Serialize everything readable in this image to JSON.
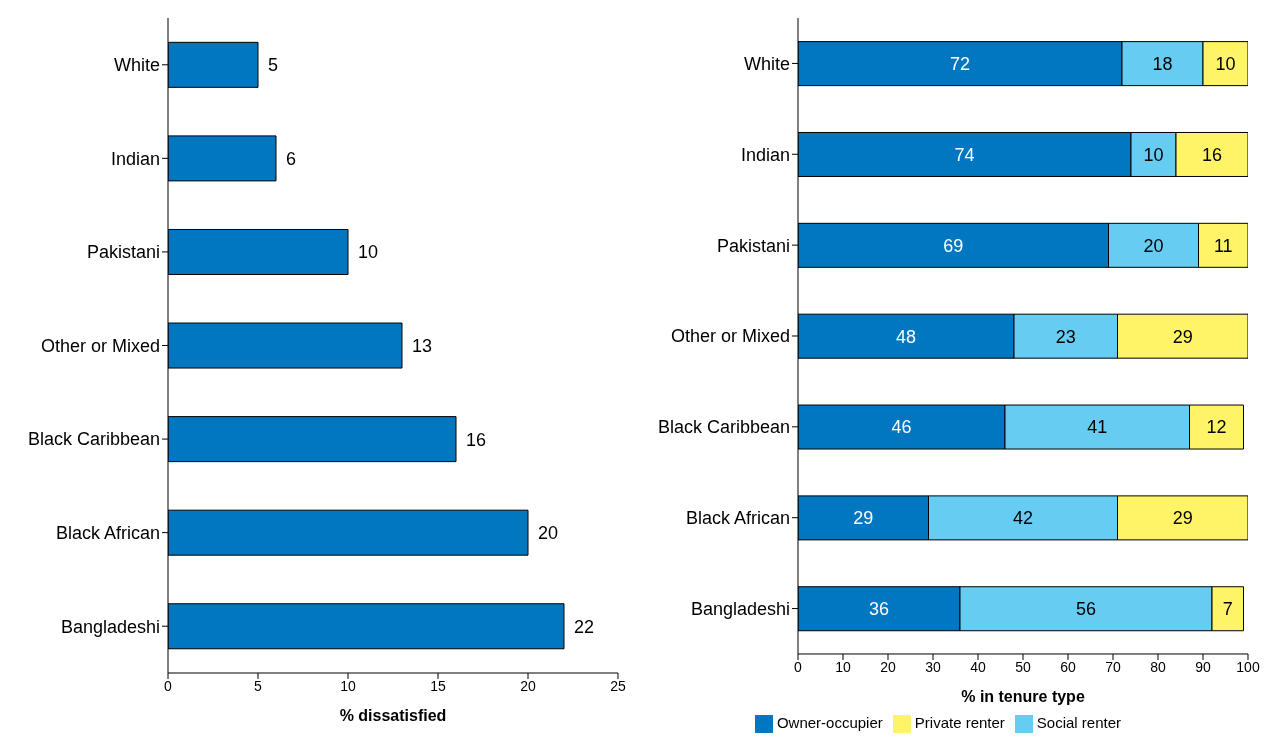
{
  "chart_data": [
    {
      "type": "bar",
      "orientation": "horizontal",
      "categories": [
        "White",
        "Indian",
        "Pakistani",
        "Other or Mixed",
        "Black Caribbean",
        "Black African",
        "Bangladeshi"
      ],
      "values": [
        5,
        6,
        10,
        13,
        16,
        20,
        22
      ],
      "color": "#0077c0",
      "xlim": [
        0,
        25
      ],
      "xticks": [
        0,
        5,
        10,
        15,
        20,
        25
      ],
      "xlabel": "% dissatisfied",
      "data_labels": true
    },
    {
      "type": "bar",
      "orientation": "horizontal",
      "stacked": true,
      "categories": [
        "White",
        "Indian",
        "Pakistani",
        "Other or Mixed",
        "Black Caribbean",
        "Black African",
        "Bangladeshi"
      ],
      "series": [
        {
          "name": "Owner-occupier",
          "color": "#0077c0",
          "values": [
            72,
            74,
            69,
            48,
            46,
            29,
            36
          ]
        },
        {
          "name": "Social renter",
          "color": "#66ccf2",
          "values": [
            18,
            10,
            20,
            23,
            41,
            42,
            56
          ]
        },
        {
          "name": "Private renter",
          "color": "#fff467",
          "values": [
            10,
            16,
            11,
            29,
            12,
            29,
            7
          ]
        }
      ],
      "xlim": [
        0,
        100
      ],
      "xticks": [
        0,
        10,
        20,
        30,
        40,
        50,
        60,
        70,
        80,
        90,
        100
      ],
      "xlabel": "% in tenure type",
      "legend": "bottom",
      "data_labels": true
    }
  ]
}
